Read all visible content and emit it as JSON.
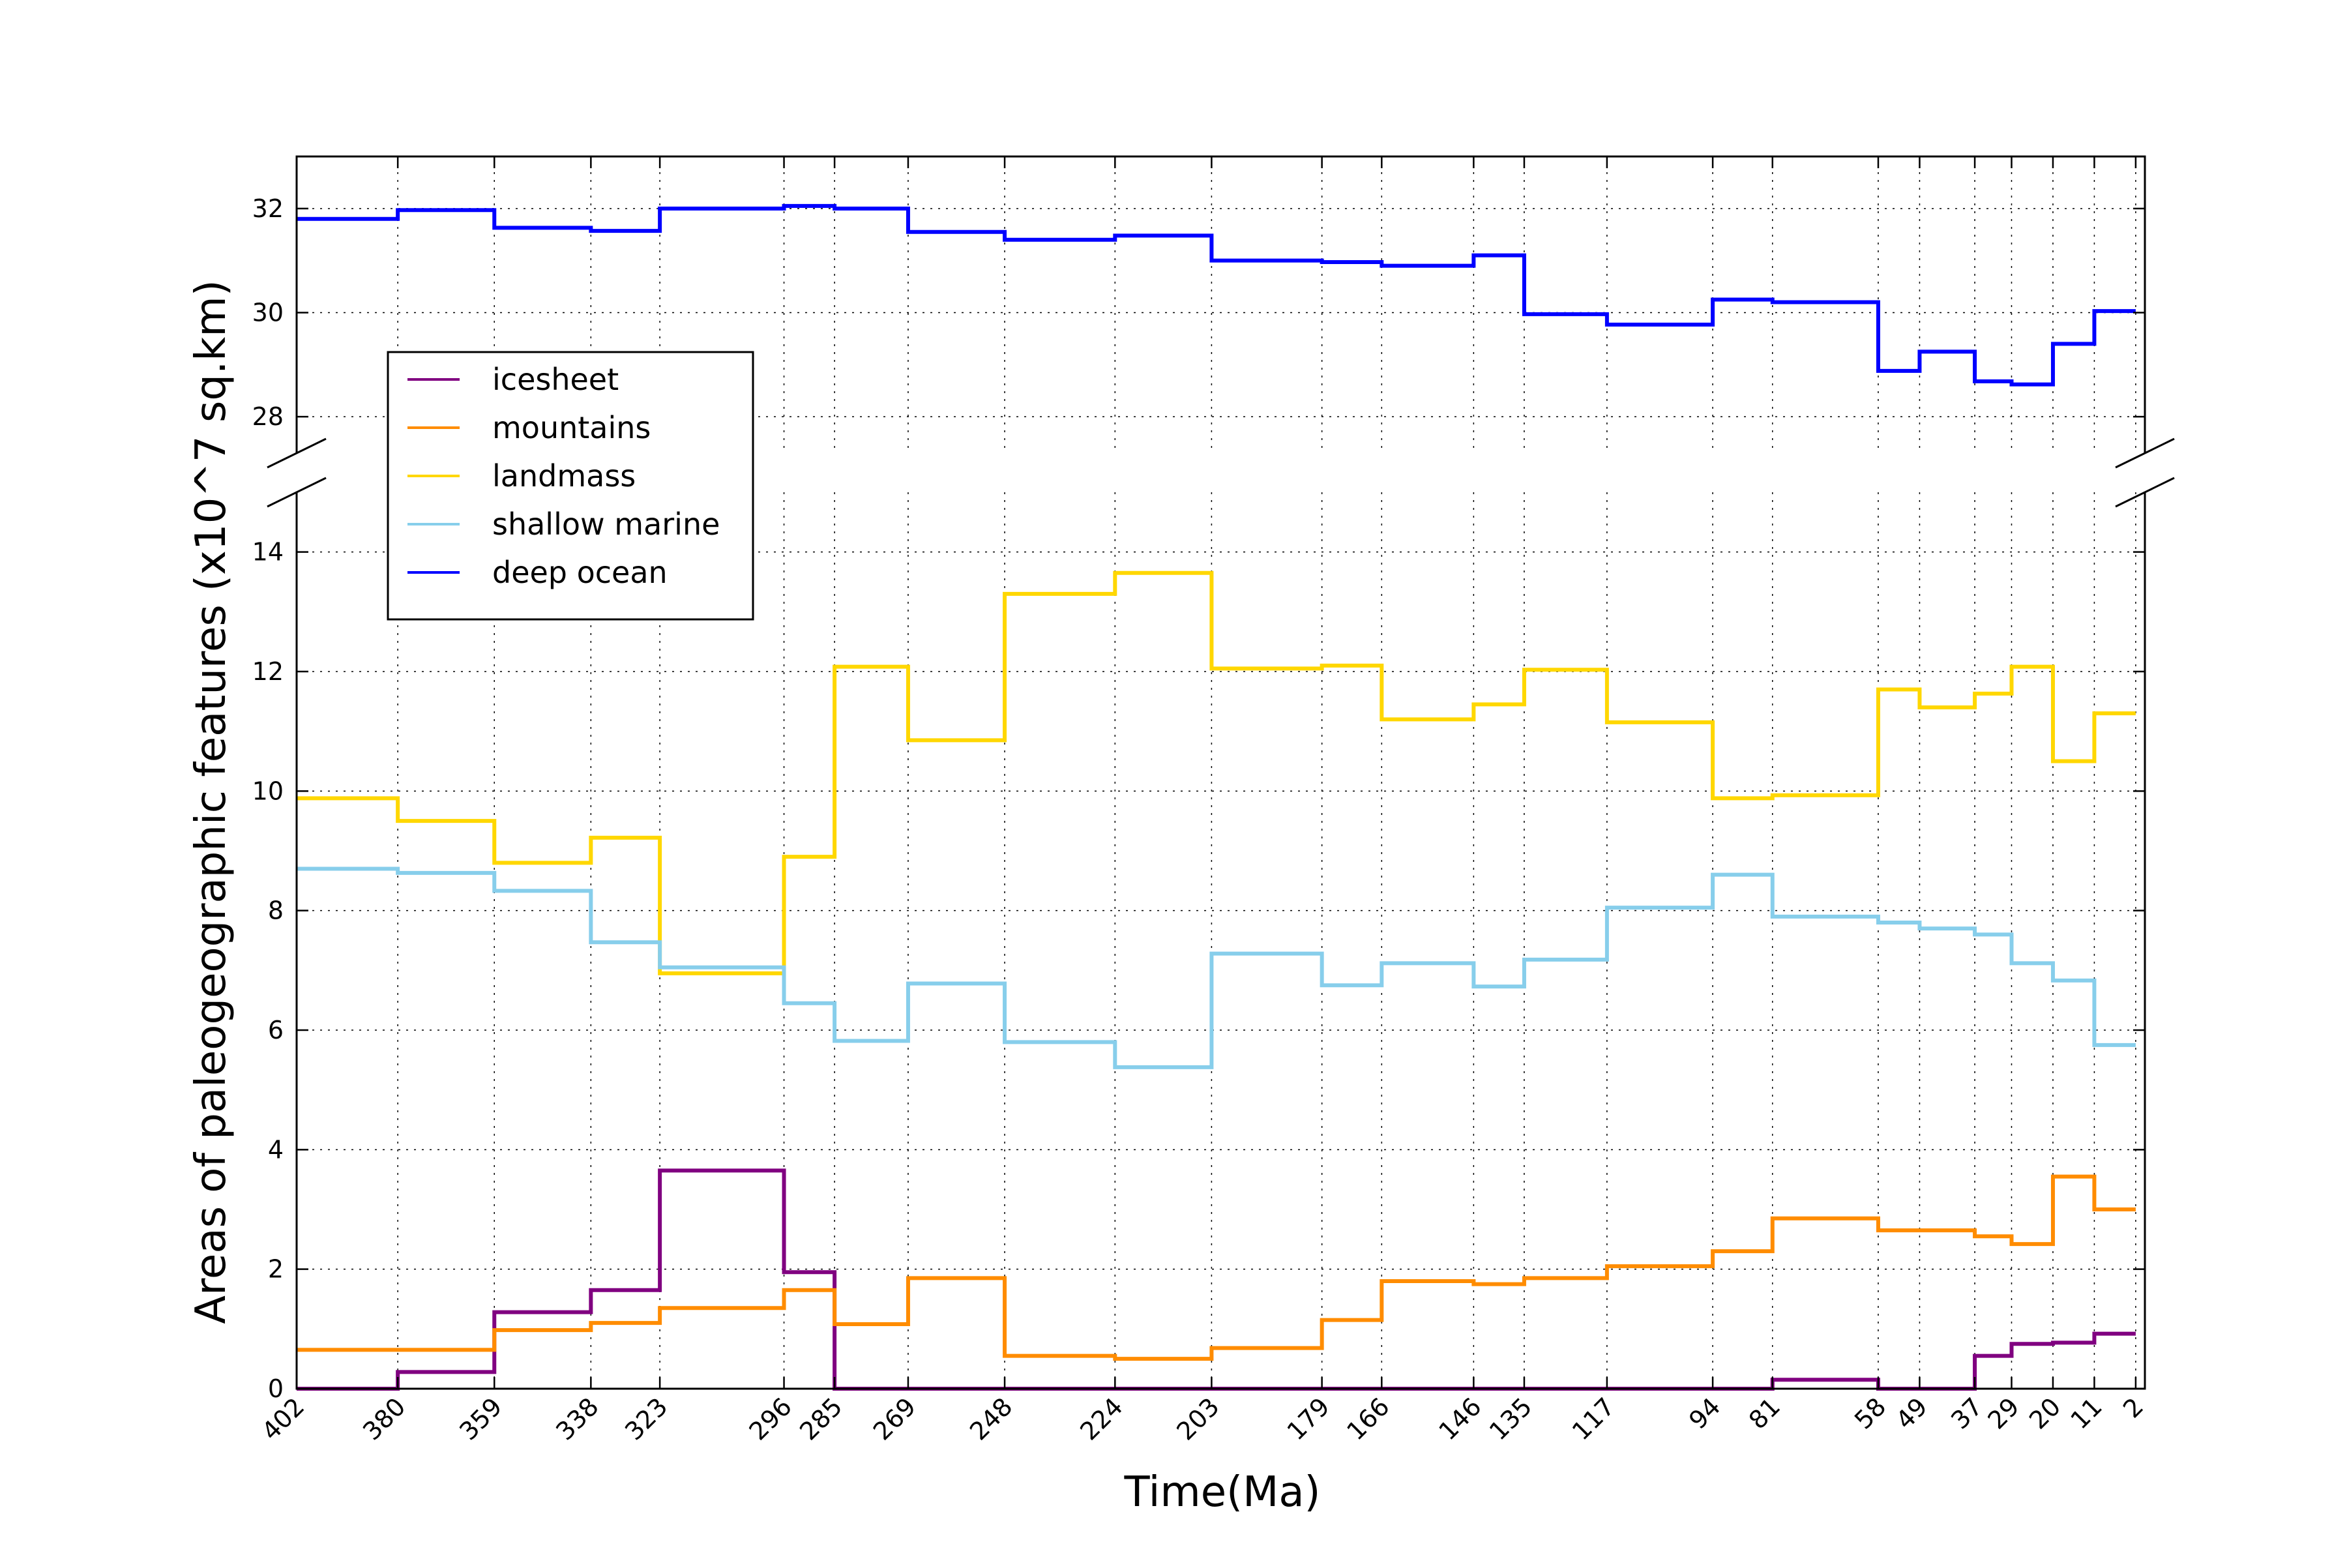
{
  "chart_data": {
    "type": "line",
    "step": "post",
    "title": "",
    "xlabel": "Time(Ma)",
    "ylabel": "Areas of paleogeographic features (x10^7 sq.km)",
    "x": [
      402,
      380,
      359,
      338,
      323,
      296,
      285,
      269,
      248,
      224,
      203,
      179,
      166,
      146,
      135,
      117,
      94,
      81,
      58,
      49,
      37,
      29,
      20,
      11,
      2
    ],
    "x_ticks": [
      "402",
      "380",
      "359",
      "338",
      "323",
      "296",
      "285",
      "269",
      "248",
      "224",
      "203",
      "179",
      "166",
      "146",
      "135",
      "117",
      "94",
      "81",
      "58",
      "49",
      "37",
      "29",
      "20",
      "11",
      "2"
    ],
    "x_reversed": true,
    "xlim": [
      402,
      0
    ],
    "broken_y_axis": true,
    "ylim_lower": [
      0,
      15
    ],
    "ylim_upper": [
      27.3,
      33
    ],
    "y_ticks_lower": [
      "0",
      "2",
      "4",
      "6",
      "8",
      "10",
      "12",
      "14"
    ],
    "y_ticks_upper": [
      "28",
      "30",
      "32"
    ],
    "grid": true,
    "legend_position": "upper-left",
    "series": [
      {
        "name": "icesheet",
        "color": "#800080",
        "values": [
          0,
          0.28,
          1.28,
          1.65,
          3.65,
          1.95,
          0,
          0,
          0,
          0,
          0,
          0,
          0,
          0,
          0,
          0,
          0,
          0.15,
          0,
          0,
          0.55,
          0.75,
          0.77,
          0.92,
          0.92
        ]
      },
      {
        "name": "mountains",
        "color": "#ff8c00",
        "values": [
          0.65,
          0.65,
          0.98,
          1.1,
          1.35,
          1.65,
          1.08,
          1.85,
          0.55,
          0.5,
          0.68,
          1.15,
          1.8,
          1.75,
          1.85,
          2.05,
          2.3,
          2.85,
          2.65,
          2.65,
          2.55,
          2.42,
          3.55,
          3.0,
          3.0
        ]
      },
      {
        "name": "landmass",
        "color": "#ffd700",
        "values": [
          9.88,
          9.5,
          8.8,
          9.22,
          6.95,
          8.9,
          12.08,
          10.85,
          13.3,
          13.65,
          12.05,
          12.1,
          11.2,
          11.45,
          12.03,
          11.15,
          9.88,
          9.93,
          11.7,
          11.4,
          11.63,
          12.08,
          10.5,
          11.3,
          11.3
        ]
      },
      {
        "name": "shallow marine",
        "color": "#87ceeb",
        "values": [
          8.7,
          8.63,
          8.33,
          7.47,
          7.05,
          6.45,
          5.82,
          6.78,
          5.8,
          5.38,
          7.28,
          6.75,
          7.12,
          6.73,
          7.18,
          8.05,
          8.6,
          7.9,
          7.8,
          7.7,
          7.6,
          7.12,
          6.83,
          5.75,
          5.75
        ]
      },
      {
        "name": "deep ocean",
        "color": "#0000ff",
        "values": [
          31.8,
          31.97,
          31.63,
          31.57,
          32.0,
          32.05,
          32.0,
          31.55,
          31.4,
          31.48,
          31.0,
          30.97,
          30.9,
          31.1,
          29.97,
          29.77,
          30.25,
          30.2,
          28.88,
          29.25,
          28.68,
          28.62,
          29.4,
          30.03,
          30.03
        ]
      }
    ]
  }
}
